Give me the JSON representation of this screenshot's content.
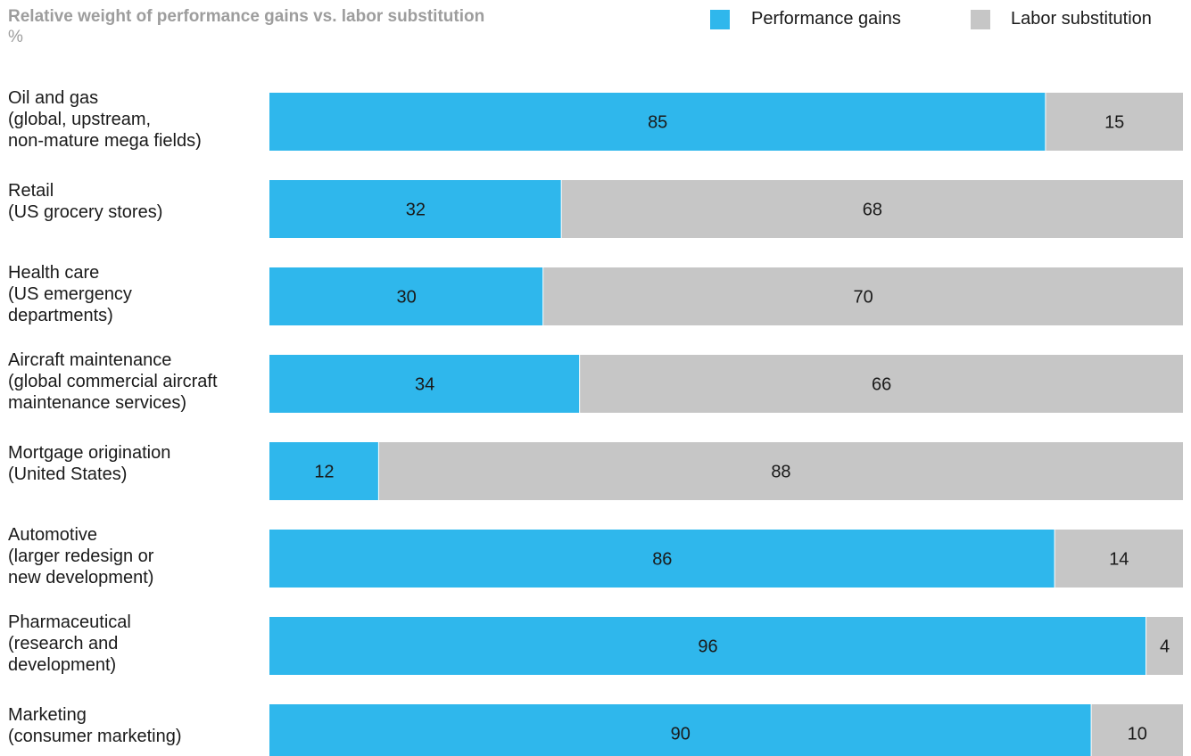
{
  "chart_data": {
    "type": "bar",
    "orientation": "horizontal",
    "stacked": true,
    "title": "Relative weight of performance gains vs. labor substitution",
    "unit": "%",
    "legend_position": "top-right",
    "grid": false,
    "xlim": [
      0,
      100
    ],
    "categories": [
      {
        "lines": [
          "Oil and gas",
          "(global, upstream,",
          "non-mature mega fields)"
        ]
      },
      {
        "lines": [
          "Retail",
          "(US grocery stores)"
        ]
      },
      {
        "lines": [
          "Health care",
          "(US emergency",
          "departments)"
        ]
      },
      {
        "lines": [
          "Aircraft maintenance",
          "(global commercial aircraft",
          "maintenance services)"
        ]
      },
      {
        "lines": [
          "Mortgage origination",
          "(United States)"
        ]
      },
      {
        "lines": [
          "Automotive",
          "(larger redesign or",
          "new development)"
        ]
      },
      {
        "lines": [
          "Pharmaceutical",
          "(research and",
          "development)"
        ]
      },
      {
        "lines": [
          "Marketing",
          "(consumer marketing)"
        ]
      }
    ],
    "series": [
      {
        "name": "Performance gains",
        "color": "#2fb7ec",
        "values": [
          85,
          32,
          30,
          34,
          12,
          86,
          96,
          90
        ]
      },
      {
        "name": "Labor substitution",
        "color": "#c6c6c6",
        "values": [
          15,
          68,
          70,
          66,
          88,
          14,
          4,
          10
        ]
      }
    ]
  }
}
